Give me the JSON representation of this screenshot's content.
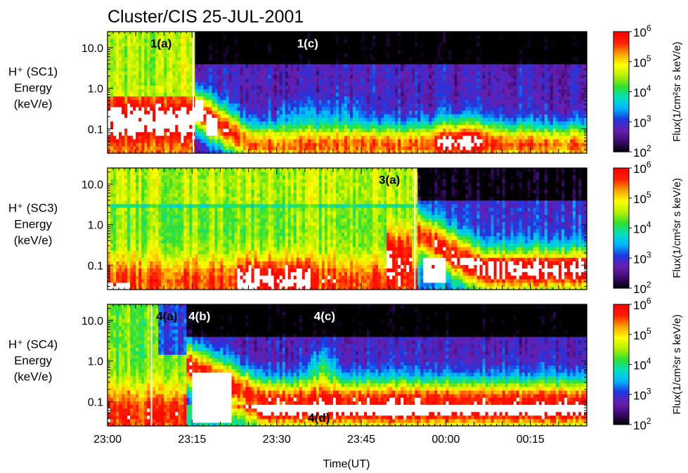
{
  "chart_data": {
    "type": "heatmap",
    "title": "Cluster/CIS 25-JUL-2001",
    "xlabel": "Time(UT)",
    "x_tick_labels": [
      "23:00",
      "23:15",
      "23:30",
      "23:45",
      "00:00",
      "00:15"
    ],
    "x_tick_minutes": [
      0,
      15,
      30,
      45,
      60,
      75
    ],
    "x_range_minutes": [
      0,
      85
    ],
    "y_scale": "log",
    "y_tick_labels": [
      "10.0",
      "1.0",
      "0.1"
    ],
    "y_tick_values": [
      10,
      1,
      0.1
    ],
    "y_range": [
      0.025,
      25
    ],
    "colorbar": {
      "label": "Flux(1/cm²sr s keV/e)",
      "scale": "log",
      "range": [
        100,
        1000000
      ],
      "tick_labels": [
        {
          "base": "10",
          "exp": "2"
        },
        {
          "base": "10",
          "exp": "3"
        },
        {
          "base": "10",
          "exp": "4"
        },
        {
          "base": "10",
          "exp": "5"
        },
        {
          "base": "10",
          "exp": "6"
        }
      ],
      "colors": [
        "#000000",
        "#3b0a6e",
        "#6a1fb0",
        "#1f35e0",
        "#00b4ff",
        "#00e0c0",
        "#30e030",
        "#b8f000",
        "#ffff00",
        "#ffa000",
        "#ff2000",
        "#ff0000"
      ]
    },
    "panels": [
      {
        "name": "SC1",
        "ylabel_top": "H⁺ (SC1)",
        "ylabel_mid": "Energy",
        "ylabel_bot": "(keV/e)",
        "annotations": [
          {
            "text": "1(a)",
            "minute": 9.5,
            "energy": 13,
            "color": "#000000"
          },
          {
            "text": "1(c)",
            "minute": 35.5,
            "energy": 13,
            "color": "#ffffff"
          }
        ],
        "vertical_lines_minutes": [
          15.2
        ],
        "boundary_minutes": [
          15.5
        ]
      },
      {
        "name": "SC3",
        "ylabel_top": "H⁺ (SC3)",
        "ylabel_mid": "Energy",
        "ylabel_bot": "(keV/e)",
        "annotations": [
          {
            "text": "3(a)",
            "minute": 50,
            "energy": 13,
            "color": "#000000"
          }
        ],
        "vertical_lines_minutes": [
          54.5
        ],
        "boundary_minutes": [
          54.8
        ]
      },
      {
        "name": "SC4",
        "ylabel_top": "H⁺ (SC4)",
        "ylabel_mid": "Energy",
        "ylabel_bot": "(keV/e)",
        "annotations": [
          {
            "text": "4(a)",
            "minute": 10.5,
            "energy": 13,
            "color": "#000000"
          },
          {
            "text": "4(b)",
            "minute": 16.3,
            "energy": 13,
            "color": "#ffffff"
          },
          {
            "text": "4(c)",
            "minute": 38.5,
            "energy": 13,
            "color": "#ffffff"
          },
          {
            "text": "4(d)",
            "minute": 37.5,
            "energy": 0.04,
            "color": "#000000"
          }
        ],
        "vertical_lines_minutes": [
          7.8
        ],
        "boundary_minutes": [
          14
        ]
      }
    ]
  }
}
